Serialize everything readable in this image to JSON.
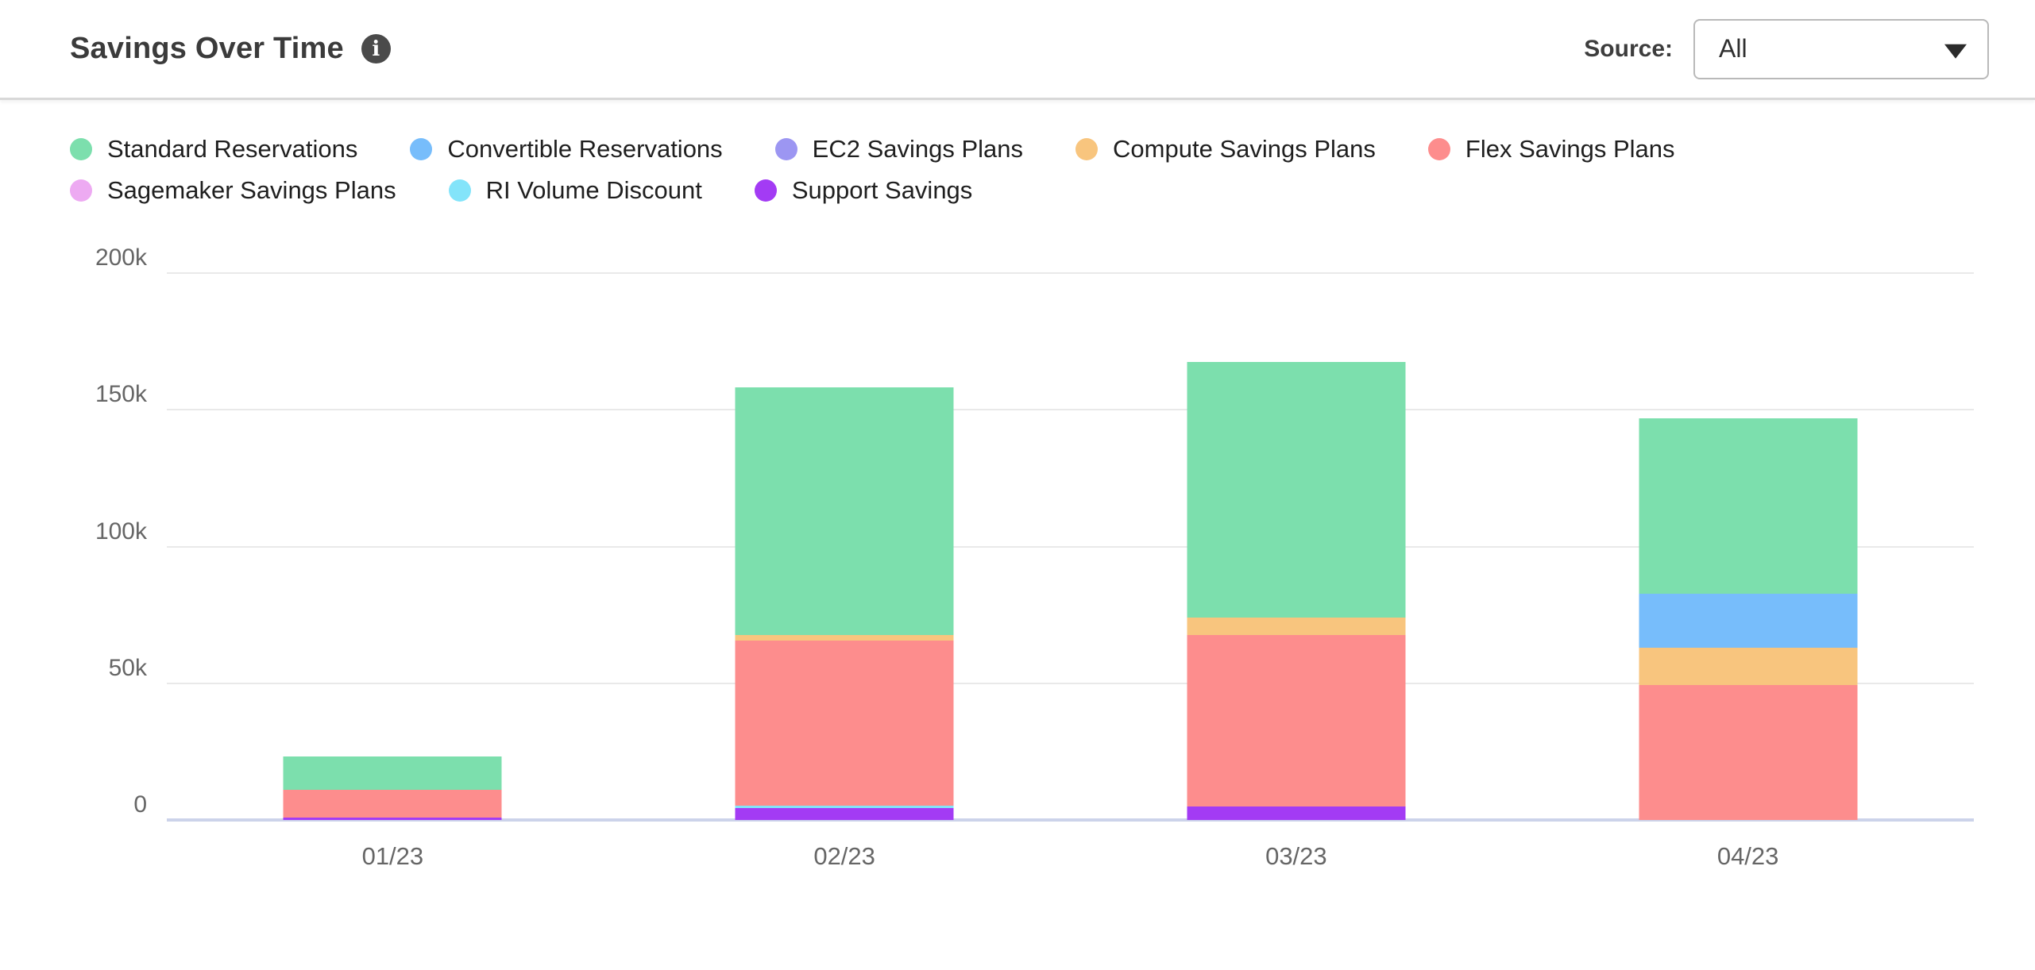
{
  "header": {
    "title": "Savings Over Time",
    "source_label": "Source:",
    "source_value": "All"
  },
  "legend": {
    "items": [
      {
        "label": "Standard Reservations",
        "color": "#7CDFAD"
      },
      {
        "label": "Convertible Reservations",
        "color": "#77BDFB"
      },
      {
        "label": "EC2 Savings Plans",
        "color": "#9C96F2"
      },
      {
        "label": "Compute Savings Plans",
        "color": "#F8C57E"
      },
      {
        "label": "Flex Savings Plans",
        "color": "#FD8D8D"
      },
      {
        "label": "Sagemaker Savings Plans",
        "color": "#EDAAF2"
      },
      {
        "label": "RI Volume Discount",
        "color": "#83E4FA"
      },
      {
        "label": "Support Savings",
        "color": "#A33BF4"
      }
    ]
  },
  "chart_data": {
    "type": "bar",
    "stacked": true,
    "title": "Savings Over Time",
    "xlabel": "",
    "ylabel": "",
    "unit": "thousands",
    "categories": [
      "01/23",
      "02/23",
      "03/23",
      "04/23"
    ],
    "series": [
      {
        "name": "Standard Reservations",
        "color": "#7CDFAD",
        "values": [
          12.2,
          90.4,
          93.6,
          64.3
        ]
      },
      {
        "name": "Convertible Reservations",
        "color": "#77BDFB",
        "values": [
          0,
          0,
          0,
          19.7
        ]
      },
      {
        "name": "EC2 Savings Plans",
        "color": "#9C96F2",
        "values": [
          0,
          0,
          0,
          0
        ]
      },
      {
        "name": "Compute Savings Plans",
        "color": "#F8C57E",
        "values": [
          0,
          2.2,
          6.4,
          13.7
        ]
      },
      {
        "name": "Flex Savings Plans",
        "color": "#FD8D8D",
        "values": [
          9.9,
          60.3,
          62.7,
          49.3
        ]
      },
      {
        "name": "Sagemaker Savings Plans",
        "color": "#EDAAF2",
        "values": [
          0,
          0,
          0,
          0
        ]
      },
      {
        "name": "RI Volume Discount",
        "color": "#83E4FA",
        "values": [
          0,
          0.9,
          0,
          0
        ]
      },
      {
        "name": "Support Savings",
        "color": "#A33BF4",
        "values": [
          1.0,
          4.3,
          4.9,
          0
        ]
      }
    ],
    "stack_order": "bottom-to-top is reverse of series list",
    "totals": [
      23.1,
      158.1,
      167.6,
      147.0
    ],
    "ylim": [
      0,
      200
    ],
    "y_ticks": [
      {
        "label": "200k",
        "value": 200
      },
      {
        "label": "150k",
        "value": 150
      },
      {
        "label": "100k",
        "value": 100
      },
      {
        "label": "50k",
        "value": 50
      },
      {
        "label": "0",
        "value": 0
      }
    ],
    "grid": true,
    "legend_position": "top"
  }
}
